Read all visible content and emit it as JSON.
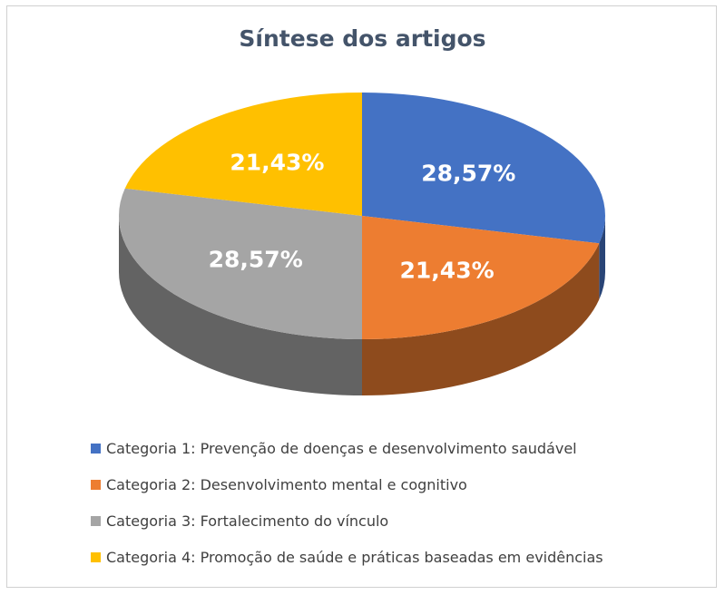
{
  "chart_data": {
    "type": "pie",
    "style": "3d",
    "title": "Síntese dos artigos",
    "legend_position": "bottom",
    "slices": [
      {
        "label": "Categoria 1: Prevenção de doenças e desenvolvimento saudável",
        "value": 28.57,
        "display": "28,57%",
        "color": "#4472c4"
      },
      {
        "label": "Categoria 2: Desenvolvimento mental e cognitivo",
        "value": 21.43,
        "display": "21,43%",
        "color": "#ed7d31"
      },
      {
        "label": "Categoria 3: Fortalecimento do vínculo",
        "value": 28.57,
        "display": "28,57%",
        "color": "#a5a5a5"
      },
      {
        "label": "Categoria 4: Promoção de saúde e práticas baseadas em evidências",
        "value": 21.43,
        "display": "21,43%",
        "color": "#ffc000"
      }
    ]
  }
}
